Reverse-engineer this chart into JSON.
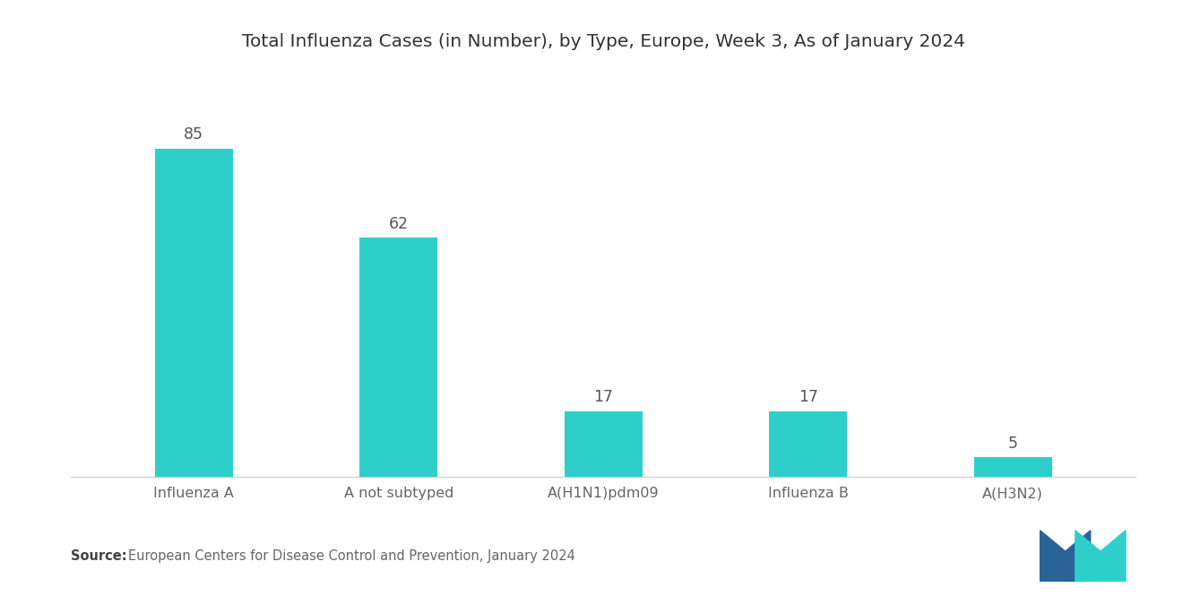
{
  "title": "Total Influenza Cases (in Number), by Type, Europe, Week 3, As of January 2024",
  "categories": [
    "Influenza A",
    "A not subtyped",
    "A(H1N1)pdm09",
    "Influenza B",
    "A(H3N2)"
  ],
  "values": [
    85,
    62,
    17,
    17,
    5
  ],
  "bar_color": "#2ECFCB",
  "background_color": "#ffffff",
  "title_fontsize": 14.5,
  "label_fontsize": 11.5,
  "value_fontsize": 12.5,
  "source_bold": "Source:",
  "source_text": "European Centers for Disease Control and Prevention, January 2024",
  "source_fontsize": 10.5,
  "ylim": [
    0,
    105
  ],
  "bar_width": 0.38,
  "logo_blue": "#2A6496",
  "logo_teal": "#2ECFCB"
}
